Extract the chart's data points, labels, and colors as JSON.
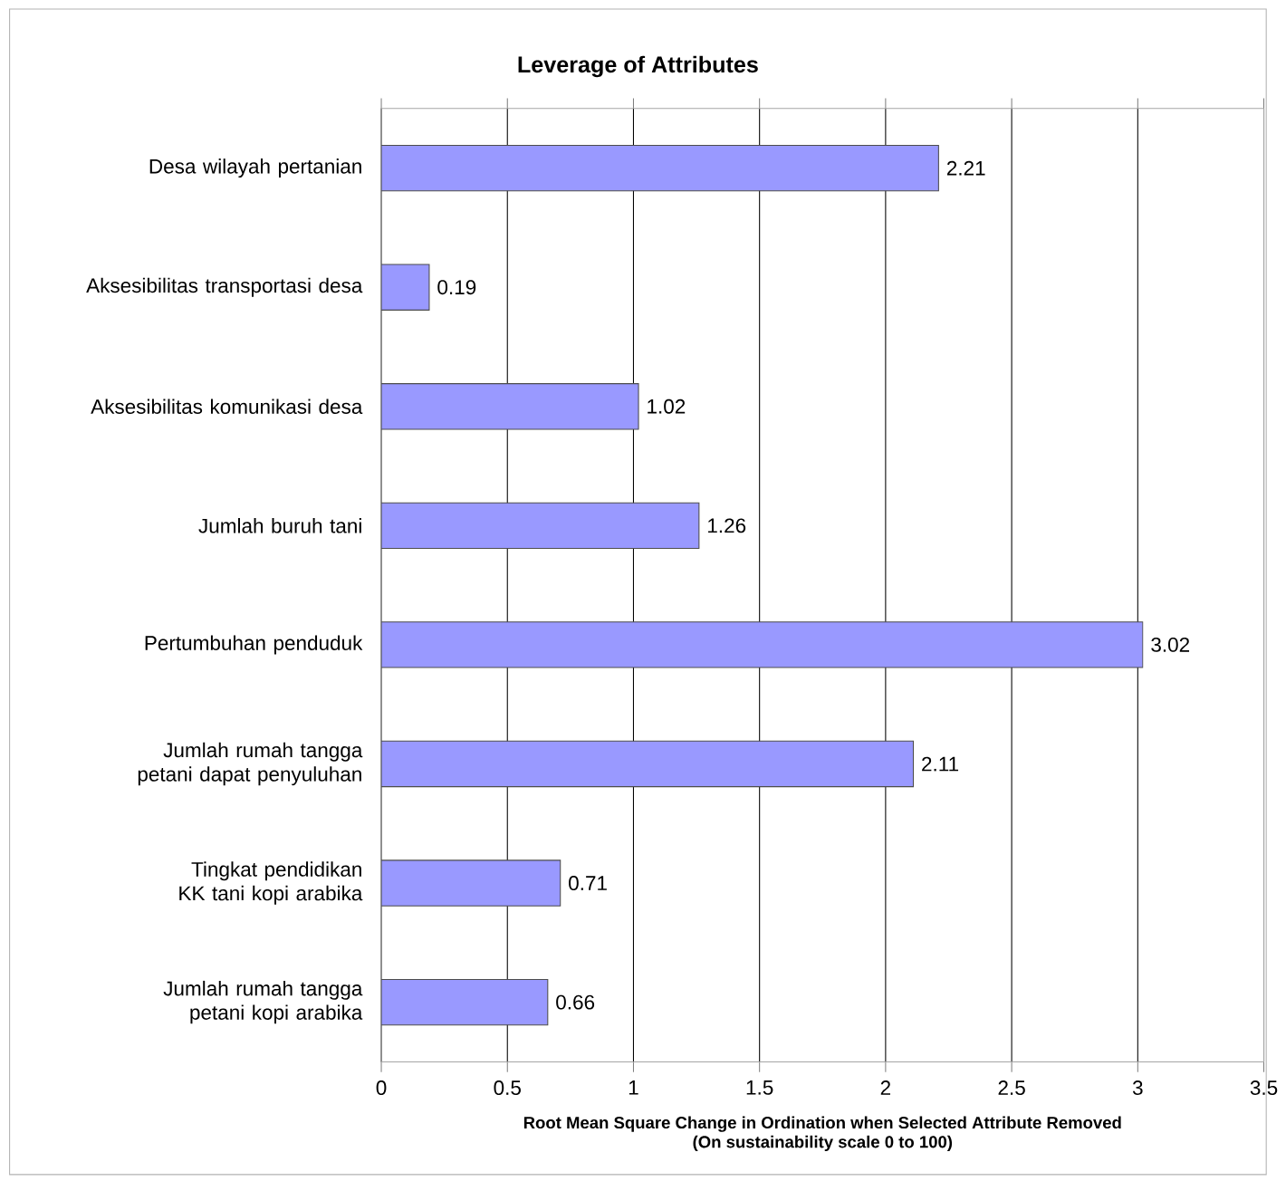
{
  "chart_data": {
    "type": "bar",
    "orientation": "horizontal",
    "title": "Leverage of Attributes",
    "categories": [
      "Desa wilayah pertanian",
      "Aksesibilitas transportasi desa",
      "Aksesibilitas komunikasi desa",
      "Jumlah buruh tani",
      "Pertumbuhan penduduk",
      "Jumlah rumah tangga petani dapat penyuluhan",
      "Tingkat pendidikan KK tani kopi arabika",
      "Jumlah rumah tangga petani kopi arabika"
    ],
    "values": [
      2.21,
      0.19,
      1.02,
      1.26,
      3.02,
      2.11,
      0.71,
      0.66
    ],
    "color": "#9999ff",
    "data_labels": true,
    "xlim": [
      0,
      3.5
    ],
    "xticks": [
      0,
      0.5,
      1,
      1.5,
      2,
      2.5,
      3,
      3.5
    ],
    "grid": "x",
    "xlabel": "Root Mean Square Change in Ordination when Selected Attribute Removed",
    "annotations": [
      "(On sustainability scale 0 to 100)"
    ]
  }
}
